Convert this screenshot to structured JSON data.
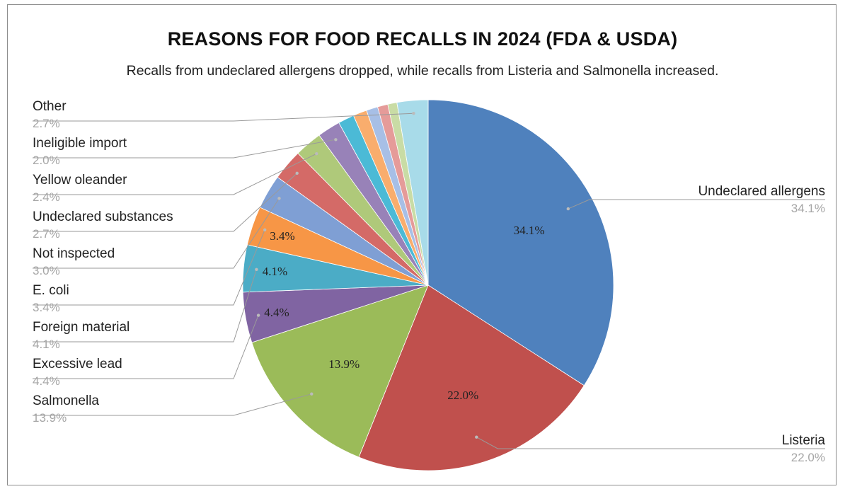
{
  "chart_data": {
    "type": "pie",
    "title": "REASONS FOR FOOD RECALLS IN 2024 (FDA & USDA)",
    "subtitle": "Recalls from undeclared allergens dropped, while recalls from Listeria and Salmonella increased.",
    "legend": "none",
    "slices": [
      {
        "label": "Undeclared allergens",
        "value": 34.1,
        "pct_text": "34.1%",
        "color": "#4f81bd",
        "inner_label": "34.1%",
        "side": "right"
      },
      {
        "label": "Listeria",
        "value": 22.0,
        "pct_text": "22.0%",
        "color": "#c0504d",
        "inner_label": "22.0%",
        "side": "right"
      },
      {
        "label": "Salmonella",
        "value": 13.9,
        "pct_text": "13.9%",
        "color": "#9bbb59",
        "inner_label": "13.9%",
        "side": "left"
      },
      {
        "label": "Excessive lead",
        "value": 4.4,
        "pct_text": "4.4%",
        "color": "#8064a2",
        "inner_label": "4.4%",
        "side": "left"
      },
      {
        "label": "Foreign material",
        "value": 4.1,
        "pct_text": "4.1%",
        "color": "#4bacc6",
        "inner_label": "4.1%",
        "side": "left"
      },
      {
        "label": "E. coli",
        "value": 3.4,
        "pct_text": "3.4%",
        "color": "#f79646",
        "inner_label": "3.4%",
        "side": "left"
      },
      {
        "label": "Not inspected",
        "value": 3.0,
        "pct_text": "3.0%",
        "color": "#7f9fd4",
        "inner_label": "",
        "side": "left"
      },
      {
        "label": "Undeclared substances",
        "value": 2.7,
        "pct_text": "2.7%",
        "color": "#d46a67",
        "inner_label": "",
        "side": "left"
      },
      {
        "label": "Yellow oleander",
        "value": 2.4,
        "pct_text": "2.4%",
        "color": "#afc97a",
        "inner_label": "",
        "side": "left"
      },
      {
        "label": "Ineligible import",
        "value": 2.0,
        "pct_text": "2.0%",
        "color": "#9882b8",
        "inner_label": "",
        "side": "left"
      },
      {
        "label": "",
        "value": 1.4,
        "pct_text": "",
        "color": "#4bbad6",
        "inner_label": "",
        "side": "none"
      },
      {
        "label": "",
        "value": 1.2,
        "pct_text": "",
        "color": "#f9ad6d",
        "inner_label": "",
        "side": "none"
      },
      {
        "label": "",
        "value": 1.0,
        "pct_text": "",
        "color": "#a7bfe6",
        "inner_label": "",
        "side": "none"
      },
      {
        "label": "",
        "value": 0.9,
        "pct_text": "",
        "color": "#e59b99",
        "inner_label": "",
        "side": "none"
      },
      {
        "label": "",
        "value": 0.8,
        "pct_text": "",
        "color": "#c9dca5",
        "inner_label": "",
        "side": "none"
      },
      {
        "label": "Other",
        "value": 2.7,
        "pct_text": "2.7%",
        "color": "#a8dbe9",
        "inner_label": "",
        "side": "left"
      }
    ]
  }
}
